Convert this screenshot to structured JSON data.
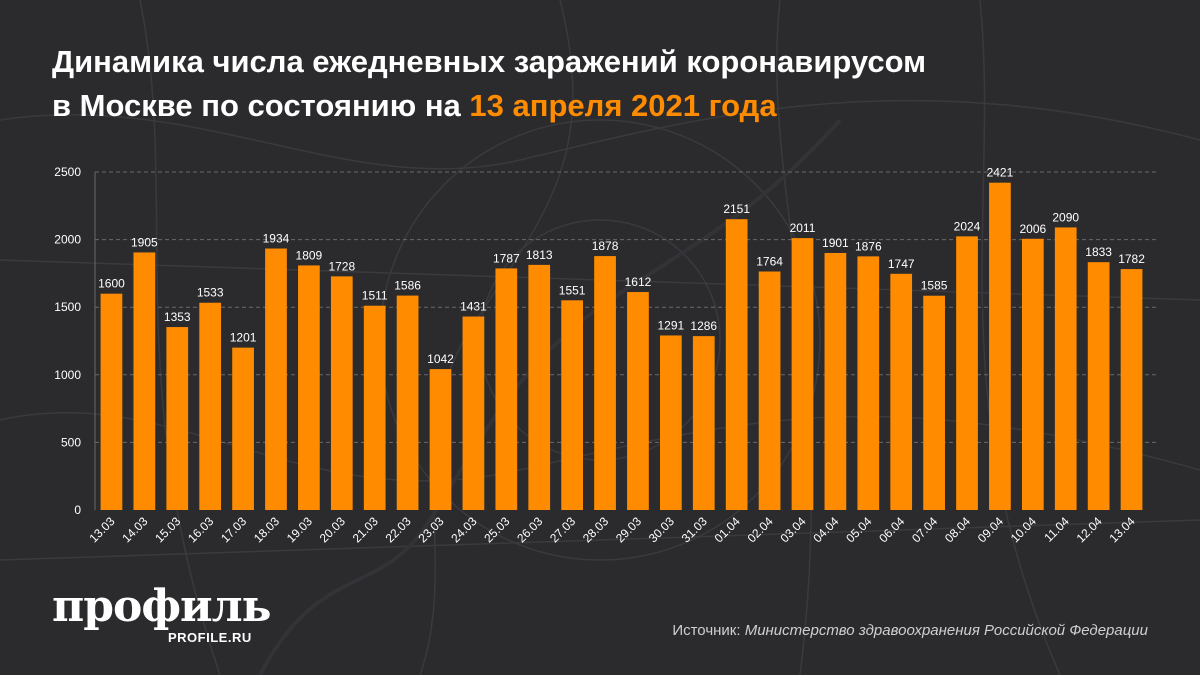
{
  "title": {
    "line1": "Динамика числа ежедневных заражений коронавирусом",
    "line2_prefix": "в Москве по состоянию на ",
    "line2_accent": "13 апреля 2021 года"
  },
  "colors": {
    "background": "#2b2b2e",
    "bar": "#ff8c00",
    "accent": "#ff8c00",
    "grid": "#6a6a6a",
    "text": "#ffffff"
  },
  "chart_data": {
    "type": "bar",
    "categories": [
      "13.03",
      "14.03",
      "15.03",
      "16.03",
      "17.03",
      "18.03",
      "19.03",
      "20.03",
      "21.03",
      "22.03",
      "23.03",
      "24.03",
      "25.03",
      "26.03",
      "27.03",
      "28.03",
      "29.03",
      "30.03",
      "31.03",
      "01.04",
      "02.04",
      "03.04",
      "04.04",
      "05.04",
      "06.04",
      "07.04",
      "08.04",
      "09.04",
      "10.04",
      "11.04",
      "12.04",
      "13.04"
    ],
    "values": [
      1600,
      1905,
      1353,
      1533,
      1201,
      1934,
      1809,
      1728,
      1511,
      1586,
      1042,
      1431,
      1787,
      1813,
      1551,
      1878,
      1612,
      1291,
      1286,
      2151,
      1764,
      2011,
      1901,
      1876,
      1747,
      1585,
      2024,
      2421,
      2006,
      2090,
      1833,
      1782
    ],
    "ylim": [
      0,
      2500
    ],
    "yticks": [
      "0",
      "500",
      "1000",
      "1500",
      "2000",
      "2500"
    ],
    "grid": true,
    "data_labels": true
  },
  "logo": {
    "main": "профиль",
    "sub": "PROFILE.RU"
  },
  "source": {
    "label": "Источник: ",
    "text": "Министерство здравоохранения Российской Федерации"
  }
}
